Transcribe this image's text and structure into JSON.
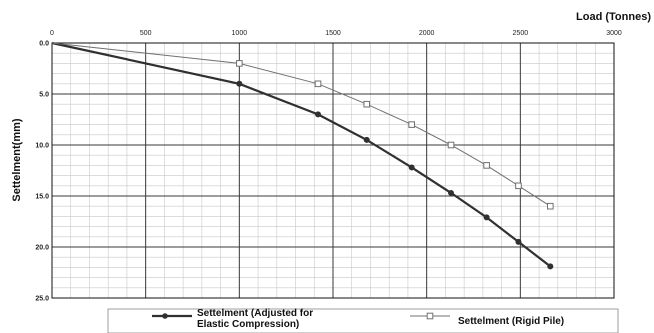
{
  "chart_data": {
    "type": "line",
    "title": "",
    "xlabel": "Load (Tonnes)",
    "ylabel": "Settelment(mm)",
    "xlim": [
      0,
      3000
    ],
    "ylim": [
      0,
      25
    ],
    "y_inverted": true,
    "x_axis_position": "top",
    "grid": true,
    "x_ticks": [
      0,
      500,
      1000,
      1500,
      2000,
      2500,
      3000
    ],
    "x_tick_labels": [
      "0",
      "500",
      "1000",
      "1500",
      "2000",
      "2500",
      "3000"
    ],
    "y_ticks": [
      0,
      5,
      10,
      15,
      20,
      25
    ],
    "y_tick_labels": [
      "0.0",
      "5.0",
      "10.0",
      "15.0",
      "20.0",
      "25.0"
    ],
    "legend_position": "bottom",
    "series": [
      {
        "name": "Settelment (Adjusted for Elastic Compression)",
        "legend_lines": [
          "Settelment (Adjusted for",
          "Elastic Compression)"
        ],
        "color": "#303030",
        "marker": "filled-circle",
        "x": [
          0,
          1000,
          1420,
          1680,
          1920,
          2130,
          2320,
          2490,
          2660
        ],
        "y": [
          0,
          4,
          7,
          9.5,
          12.2,
          14.7,
          17.1,
          19.5,
          21.9
        ]
      },
      {
        "name": "Settelment (Rigid Pile)",
        "legend_lines": [
          "Settelment (Rigid Pile)"
        ],
        "color": "#707070",
        "marker": "open-square",
        "x": [
          0,
          1000,
          1420,
          1680,
          1920,
          2130,
          2320,
          2490,
          2660
        ],
        "y": [
          0,
          2,
          4,
          6,
          8,
          10,
          12,
          14,
          16
        ]
      }
    ]
  }
}
